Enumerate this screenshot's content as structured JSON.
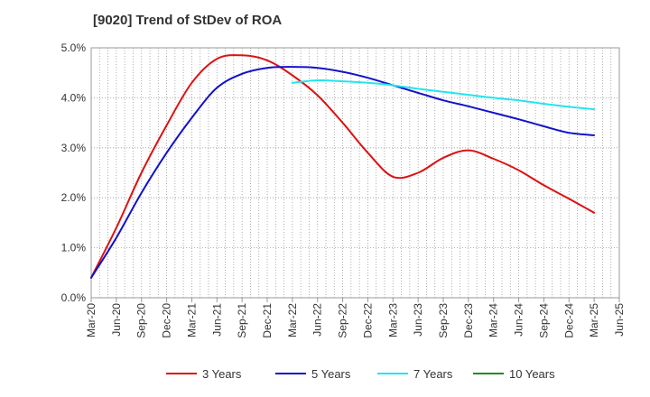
{
  "chart_data": {
    "type": "line",
    "title": "[9020]  Trend of StDev of ROA",
    "xlabel": "",
    "ylabel": "",
    "x": [
      "Mar-20",
      "Jun-20",
      "Sep-20",
      "Dec-20",
      "Mar-21",
      "Jun-21",
      "Sep-21",
      "Dec-21",
      "Mar-22",
      "Jun-22",
      "Sep-22",
      "Dec-22",
      "Mar-23",
      "Jun-23",
      "Sep-23",
      "Dec-23",
      "Mar-24",
      "Jun-24",
      "Sep-24",
      "Dec-24",
      "Mar-25",
      "Jun-25"
    ],
    "ylim": [
      0,
      5
    ],
    "yticks": [
      0,
      1,
      2,
      3,
      4,
      5
    ],
    "ytick_labels": [
      "0.0%",
      "1.0%",
      "2.0%",
      "3.0%",
      "4.0%",
      "5.0%"
    ],
    "grid": true,
    "legend_position": "bottom",
    "series": [
      {
        "name": "3 Years",
        "color": "#dd1111",
        "values": [
          0.4,
          1.4,
          2.5,
          3.45,
          4.3,
          4.78,
          4.85,
          4.75,
          4.45,
          4.05,
          3.5,
          2.9,
          2.42,
          2.5,
          2.8,
          2.95,
          2.78,
          2.55,
          2.25,
          1.98,
          1.7,
          null
        ]
      },
      {
        "name": "5 Years",
        "color": "#1111cc",
        "values": [
          0.4,
          1.2,
          2.1,
          2.9,
          3.6,
          4.2,
          4.48,
          4.6,
          4.62,
          4.6,
          4.52,
          4.4,
          4.25,
          4.1,
          3.95,
          3.83,
          3.7,
          3.57,
          3.43,
          3.3,
          3.25,
          null
        ]
      },
      {
        "name": "7 Years",
        "color": "#22e5f0",
        "values": [
          null,
          null,
          null,
          null,
          null,
          null,
          null,
          null,
          4.3,
          4.35,
          4.33,
          4.3,
          4.25,
          4.18,
          4.12,
          4.06,
          4.0,
          3.95,
          3.88,
          3.82,
          3.77,
          null
        ]
      },
      {
        "name": "10 Years",
        "color": "#228b22",
        "values": [
          null,
          null,
          null,
          null,
          null,
          null,
          null,
          null,
          null,
          null,
          null,
          null,
          null,
          null,
          null,
          null,
          null,
          null,
          null,
          null,
          null,
          null
        ]
      }
    ]
  }
}
